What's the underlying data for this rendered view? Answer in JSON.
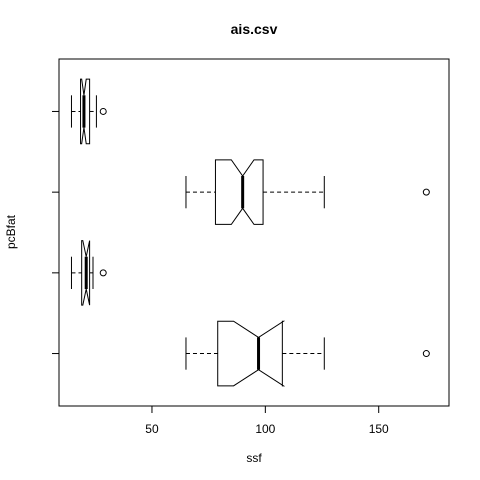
{
  "chart_data": {
    "type": "boxplot",
    "title": "ais.csv",
    "xlabel": "ssf",
    "ylabel": "pcBfat",
    "xlim": [
      9.0,
      181.0
    ],
    "x_ticks": [
      50,
      100,
      150
    ],
    "x_tick_labels": [
      "50",
      "100",
      "150"
    ],
    "horizontal": true,
    "notched": true,
    "categories": [
      "",
      "",
      "",
      ""
    ],
    "series": [
      {
        "min": 65.0,
        "q1": 79.0,
        "median": 97.0,
        "q3": 107.5,
        "max": 126.0,
        "notch_low": 86.0,
        "notch_high": 108.0,
        "outliers": [
          171.0
        ]
      },
      {
        "min": 14.5,
        "q1": 19.0,
        "median": 21.0,
        "q3": 22.5,
        "max": 24.0,
        "notch_low": 19.5,
        "notch_high": 22.5,
        "outliers": [
          28.5
        ]
      },
      {
        "min": 65.0,
        "q1": 78.0,
        "median": 90.0,
        "q3": 99.0,
        "max": 126.0,
        "notch_low": 85.0,
        "notch_high": 95.0,
        "outliers": [
          171.0
        ]
      },
      {
        "min": 14.5,
        "q1": 18.5,
        "median": 20.0,
        "q3": 22.5,
        "max": 25.5,
        "notch_low": 19.0,
        "notch_high": 21.0,
        "outliers": [
          28.5
        ]
      }
    ]
  }
}
